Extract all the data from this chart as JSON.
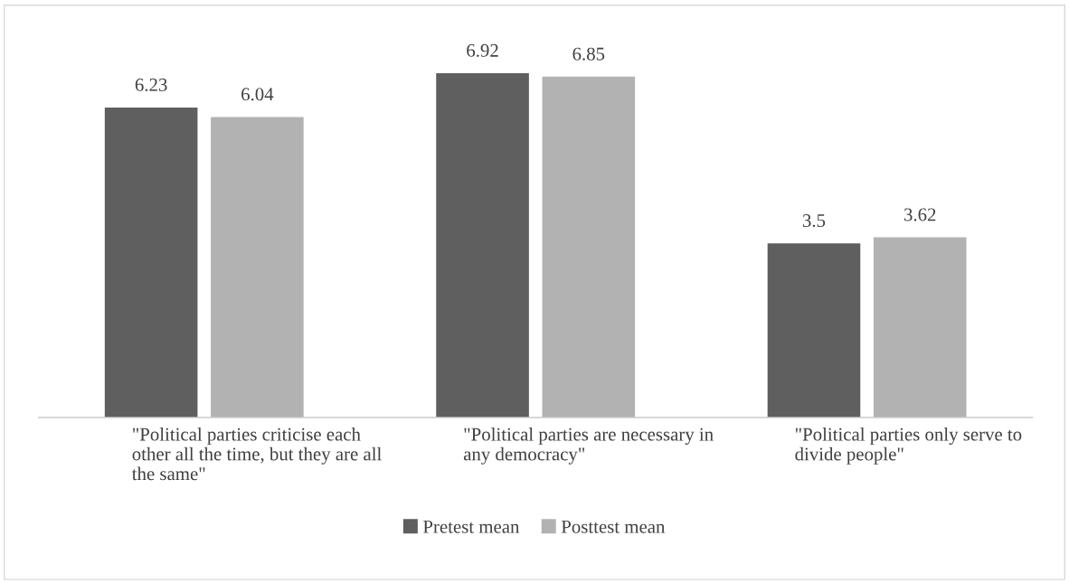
{
  "chart_data": {
    "type": "bar",
    "categories": [
      "\"Political parties criticise each other all the time, but they are all the same\"",
      "\"Political parties are necessary in any democracy\"",
      "\"Political parties only serve to divide people\""
    ],
    "series": [
      {
        "name": "Pretest mean",
        "color": "#5f5f5f",
        "values": [
          6.23,
          6.92,
          3.5
        ]
      },
      {
        "name": "Posttest mean",
        "color": "#b2b2b2",
        "values": [
          6.04,
          6.85,
          3.62
        ]
      }
    ],
    "data_labels": true,
    "legend": "bottom",
    "grid": false
  }
}
